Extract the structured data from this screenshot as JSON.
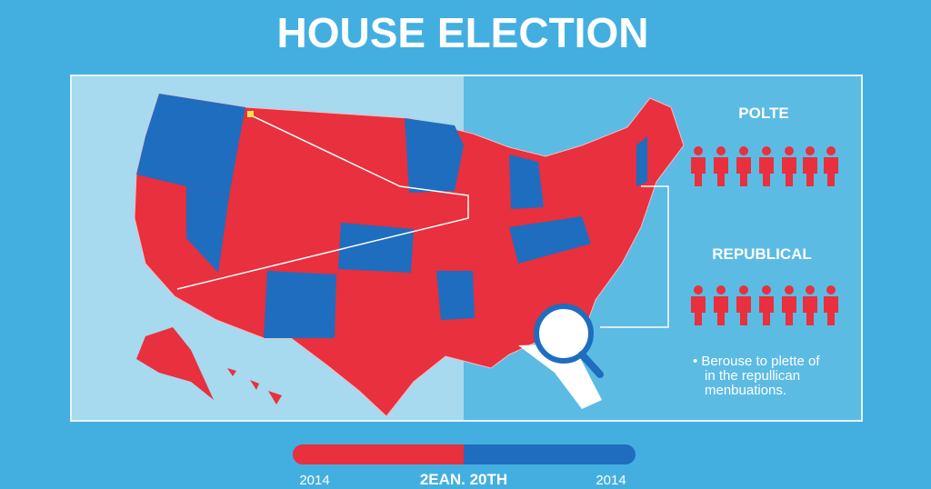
{
  "header": {
    "title": "HOUSE ELECTION"
  },
  "side_panel": {
    "section_1": "POLTE",
    "section_2": "REPUBLICAL",
    "note_lines": [
      "• Berouse to plette of",
      "in the repullican",
      "menbuations."
    ]
  },
  "footer": {
    "left_label": "2014",
    "center_label": "2EAN. 20TH",
    "right_label": "2014"
  }
}
